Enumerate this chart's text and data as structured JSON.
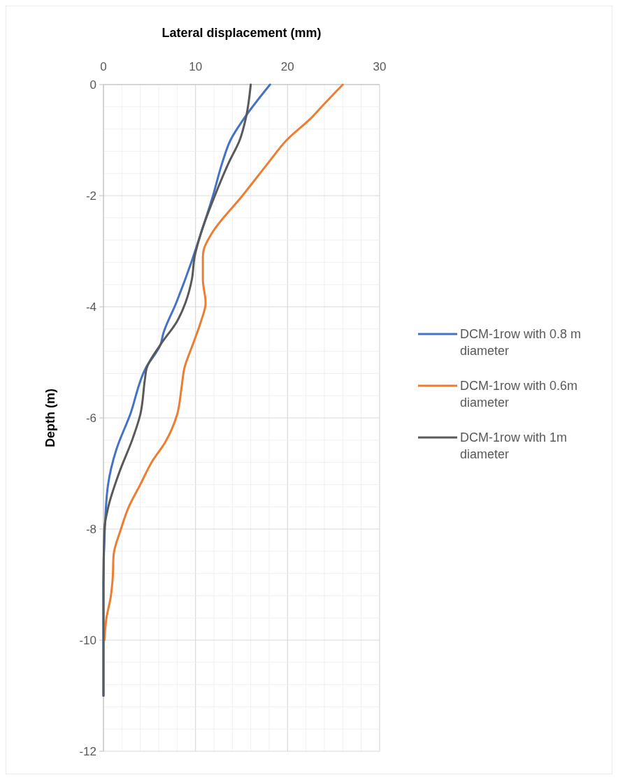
{
  "chart_data": {
    "type": "line",
    "xlabel": "Lateral displacement (mm)",
    "ylabel": "Depth (m)",
    "xlim": [
      0,
      30
    ],
    "ylim": [
      -12,
      0
    ],
    "xticks": [
      0,
      {
        "value": 2,
        "label": null
      },
      {
        "value": 4,
        "label": null
      },
      {
        "value": 6,
        "label": null
      },
      {
        "value": 8,
        "label": null
      },
      10,
      {
        "value": 12,
        "label": null
      },
      {
        "value": 14,
        "label": null
      },
      {
        "value": 16,
        "label": null
      },
      {
        "value": 18,
        "label": null
      },
      20,
      {
        "value": 22,
        "label": null
      },
      {
        "value": 24,
        "label": null
      },
      {
        "value": 26,
        "label": null
      },
      {
        "value": 28,
        "label": null
      },
      30
    ],
    "yticks": [
      0,
      {
        "value": -0.4,
        "label": null
      },
      {
        "value": -0.8,
        "label": null
      },
      {
        "value": -1.2,
        "label": null
      },
      {
        "value": -1.6,
        "label": null
      },
      -2,
      {
        "value": -2.4,
        "label": null
      },
      {
        "value": -2.8,
        "label": null
      },
      {
        "value": -3.2,
        "label": null
      },
      {
        "value": -3.6,
        "label": null
      },
      -4,
      {
        "value": -4.4,
        "label": null
      },
      {
        "value": -4.8,
        "label": null
      },
      {
        "value": -5.2,
        "label": null
      },
      {
        "value": -5.6,
        "label": null
      },
      -6,
      {
        "value": -6.4,
        "label": null
      },
      {
        "value": -6.8,
        "label": null
      },
      {
        "value": -7.2,
        "label": null
      },
      {
        "value": -7.6,
        "label": null
      },
      -8,
      {
        "value": -8.4,
        "label": null
      },
      {
        "value": -8.8,
        "label": null
      },
      {
        "value": -9.2,
        "label": null
      },
      {
        "value": -9.6,
        "label": null
      },
      -10,
      {
        "value": -10.4,
        "label": null
      },
      {
        "value": -10.8,
        "label": null
      },
      {
        "value": -11.2,
        "label": null
      },
      {
        "value": -11.6,
        "label": null
      },
      -12
    ],
    "grid": true,
    "legend": "right",
    "marker": "none",
    "line_style": "solid",
    "series": [
      {
        "name": "DCM-1row with 0.8 m diameter",
        "color": "#4472c4",
        "x": [
          18.1,
          15.4,
          13.8,
          12.9,
          11.9,
          10.6,
          9.5,
          7.9,
          6.5,
          6.2,
          4.6,
          2.9,
          1.4,
          0.5,
          0.15,
          0,
          0
        ],
        "values": [
          0,
          -0.58,
          -1.0,
          -1.41,
          -2,
          -2.67,
          -3.22,
          -3.93,
          -4.48,
          -4.68,
          -5.1,
          -5.94,
          -6.57,
          -7.2,
          -8,
          -9,
          -11
        ]
      },
      {
        "name": "DCM-1row with 0.6m diameter",
        "color": "#ed7d31",
        "x": [
          26,
          23.7,
          22.7,
          19.9,
          17.9,
          15.1,
          11.8,
          10.9,
          10.8,
          10.8,
          11.1,
          10.6,
          9.7,
          8.8,
          8.5,
          8.0,
          6.7,
          5.3,
          4.0,
          2.7,
          1.9,
          1.1,
          1.0,
          0.8,
          0.3,
          0.1
        ],
        "values": [
          0,
          -0.4,
          -0.58,
          -1.0,
          -1.41,
          -2,
          -2.67,
          -2.97,
          -3.1,
          -3.51,
          -3.93,
          -4.26,
          -4.68,
          -5.1,
          -5.43,
          -5.94,
          -6.44,
          -6.78,
          -7.2,
          -7.62,
          -8,
          -8.47,
          -8.89,
          -9.21,
          -9.63,
          -10
        ]
      },
      {
        "name": "DCM-1row with 1m diameter",
        "color": "#595959",
        "x": [
          16.0,
          15.5,
          14.8,
          13.6,
          12.1,
          10.6,
          9.9,
          9.6,
          8.9,
          8.0,
          6.2,
          4.7,
          4.5,
          4.0,
          3.2,
          1.7,
          0.5,
          0.1,
          0,
          0
        ],
        "values": [
          0,
          -0.58,
          -1.0,
          -1.41,
          -2,
          -2.67,
          -3.1,
          -3.51,
          -3.93,
          -4.26,
          -4.68,
          -5.1,
          -5.31,
          -5.94,
          -6.36,
          -6.99,
          -7.62,
          -8,
          -9,
          -11
        ]
      }
    ]
  }
}
